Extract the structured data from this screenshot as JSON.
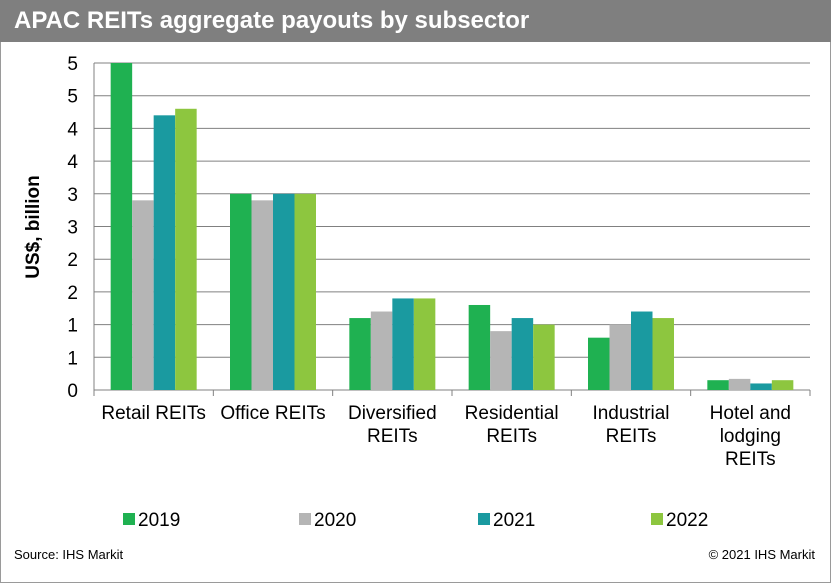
{
  "header": {
    "title": "APAC REITs aggregate payouts by subsector"
  },
  "footer": {
    "source": "Source: IHS Markit",
    "copyright": "© 2021 IHS Markit"
  },
  "chart_data": {
    "type": "bar",
    "title": "APAC REITs aggregate payouts by subsector",
    "xlabel": "",
    "ylabel": "US$, billion",
    "ylim": [
      0,
      5
    ],
    "ytick_values": [
      0,
      0.5,
      1,
      1.5,
      2,
      2.5,
      3,
      3.5,
      4,
      4.5,
      5
    ],
    "ytick_labels": [
      "0",
      "1",
      "1",
      "2",
      "2",
      "3",
      "3",
      "4",
      "4",
      "5",
      "5"
    ],
    "grid": true,
    "legend_position": "bottom",
    "categories": [
      [
        "Retail REITs"
      ],
      [
        "Office REITs"
      ],
      [
        "Diversified",
        "REITs"
      ],
      [
        "Residential",
        "REITs"
      ],
      [
        "Industrial",
        "REITs"
      ],
      [
        "Hotel  and",
        "lodging",
        "REITs"
      ]
    ],
    "series": [
      {
        "name": "2019",
        "color": "#1fb151",
        "values": [
          5.0,
          3.0,
          1.1,
          1.3,
          0.8,
          0.15
        ]
      },
      {
        "name": "2020",
        "color": "#b5b5b5",
        "values": [
          2.9,
          2.9,
          1.2,
          0.9,
          1.0,
          0.17
        ]
      },
      {
        "name": "2021",
        "color": "#1a9aa0",
        "values": [
          4.2,
          3.0,
          1.4,
          1.1,
          1.2,
          0.1
        ]
      },
      {
        "name": "2022",
        "color": "#8dc63f",
        "values": [
          4.3,
          3.0,
          1.4,
          1.0,
          1.1,
          0.15
        ]
      }
    ]
  }
}
